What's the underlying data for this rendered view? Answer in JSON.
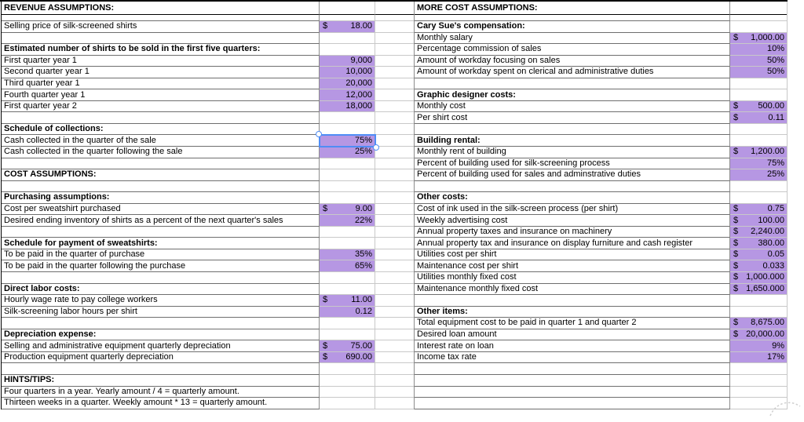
{
  "colors": {
    "highlight": "#b697e3",
    "selection_border": "#4f8df5",
    "grid_dark": "#6e6e6e",
    "grid_mid": "#8c8c8c",
    "grid_light": "#c8c8c8",
    "border_black": "#000000",
    "scribble": "#cfcfcf"
  },
  "left": {
    "rows": [
      {
        "label": "REVENUE ASSUMPTIONS:",
        "bold": true,
        "header": true
      },
      {
        "spacer": true
      },
      {
        "label": "Selling price of silk-screened shirts",
        "dollar": "$",
        "value": "18.00",
        "hl": true
      },
      {
        "label": ""
      },
      {
        "label": "Estimated number of shirts to be sold in the first five quarters:",
        "bold": true
      },
      {
        "label": "First quarter year 1",
        "value": "9,000",
        "hl": true
      },
      {
        "label": "Second quarter year 1",
        "value": "10,000",
        "hl": true
      },
      {
        "label": "Third quarter year 1",
        "value": "20,000",
        "hl": true
      },
      {
        "label": "Fourth quarter year 1",
        "value": "12,000",
        "hl": true
      },
      {
        "label": "First quarter year 2",
        "value": "18,000",
        "hl": true
      },
      {
        "label": ""
      },
      {
        "label": "Schedule of collections:",
        "bold": true
      },
      {
        "label": "Cash collected in the quarter of the sale",
        "value": "75%",
        "hl": true,
        "selected": true
      },
      {
        "label": "Cash collected in the quarter following the sale",
        "value": "25%",
        "hl": true
      },
      {
        "label": ""
      },
      {
        "label": "COST ASSUMPTIONS:",
        "bold": true
      },
      {
        "label": ""
      },
      {
        "label": "Purchasing assumptions:",
        "bold": true
      },
      {
        "label": "Cost per sweatshirt purchased",
        "dollar": "$",
        "value": "9.00",
        "hl": true
      },
      {
        "label": "Desired ending inventory of shirts as a percent of the next quarter's sales",
        "value": "22%",
        "hl": true
      },
      {
        "label": ""
      },
      {
        "label": "Schedule for payment of sweatshirts:",
        "bold": true
      },
      {
        "label": "To be paid in the quarter of purchase",
        "value": "35%",
        "hl": true
      },
      {
        "label": "To be paid in the quarter following the purchase",
        "value": "65%",
        "hl": true
      },
      {
        "label": ""
      },
      {
        "label": "Direct labor costs:",
        "bold": true
      },
      {
        "label": "Hourly wage rate to pay college workers",
        "dollar": "$",
        "value": "11.00",
        "hl": true
      },
      {
        "label": "Silk-screening labor hours per shirt",
        "value": "0.12",
        "hl": true
      },
      {
        "label": ""
      },
      {
        "label": "Depreciation expense:",
        "bold": true
      },
      {
        "label": "Selling and administrative equipment quarterly depreciation",
        "dollar": "$",
        "value": "75.00",
        "hl": true
      },
      {
        "label": "Production equipment quarterly depreciation",
        "dollar": "$",
        "value": "690.00",
        "hl": true
      },
      {
        "label": ""
      },
      {
        "label": "HINTS/TIPS:",
        "bold": true
      },
      {
        "label": "Four quarters in a year.  Yearly amount / 4 = quarterly amount."
      },
      {
        "label": "Thirteen weeks in a quarter.  Weekly amount * 13 = quarterly amount."
      }
    ]
  },
  "right": {
    "rows": [
      {
        "label": "MORE COST ASSUMPTIONS:",
        "bold": true,
        "header": true
      },
      {
        "spacer": true
      },
      {
        "label": "Cary Sue's compensation:",
        "bold": true
      },
      {
        "label": "Monthly salary",
        "dollar": "$",
        "value": "1,000.00",
        "hl": true
      },
      {
        "label": "Percentage commission of sales",
        "value": "10%",
        "hl": true
      },
      {
        "label": "Amount of workday focusing on sales",
        "value": "50%",
        "hl": true
      },
      {
        "label": "Amount of workday spent on clerical and administrative duties",
        "value": "50%",
        "hl": true
      },
      {
        "label": ""
      },
      {
        "label": "Graphic designer costs:",
        "bold": true
      },
      {
        "label": "Monthly cost",
        "dollar": "$",
        "value": "500.00",
        "hl": true
      },
      {
        "label": "Per shirt cost",
        "dollar": "$",
        "value": "0.11",
        "hl": true
      },
      {
        "label": ""
      },
      {
        "label": "Building rental:",
        "bold": true
      },
      {
        "label": "Monthly rent of building",
        "dollar": "$",
        "value": "1,200.00",
        "hl": true
      },
      {
        "label": "Percent of building used for silk-screening process",
        "value": "75%",
        "hl": true
      },
      {
        "label": "Percent of building used for sales and adminstrative duties",
        "value": "25%",
        "hl": true
      },
      {
        "label": ""
      },
      {
        "label": "Other costs:",
        "bold": true
      },
      {
        "label": "Cost of ink used in the silk-screen process (per shirt)",
        "dollar": "$",
        "value": "0.75",
        "hl": true
      },
      {
        "label": "Weekly advertising cost",
        "dollar": "$",
        "value": "100.00",
        "hl": true
      },
      {
        "label": "Annual property taxes and insurance on machinery",
        "dollar": "$",
        "value": "2,240.00",
        "hl": true
      },
      {
        "label": "Annual property tax and insurance on display furniture and cash register",
        "dollar": "$",
        "value": "380.00",
        "hl": true
      },
      {
        "label": "Utilities cost per shirt",
        "dollar": "$",
        "value": "0.05",
        "hl": true
      },
      {
        "label": "Maintenance cost per shirt",
        "dollar": "$",
        "value": "0.033",
        "hl": true
      },
      {
        "label": "Utilities monthly fixed cost",
        "dollar": "$",
        "value": "1,000.000",
        "hl": true
      },
      {
        "label": "Maintenance monthly fixed cost",
        "dollar": "$",
        "value": "1,650.000",
        "hl": true
      },
      {
        "label": ""
      },
      {
        "label": "Other items:",
        "bold": true
      },
      {
        "label": "Total equipment cost to be paid in quarter 1 and quarter 2",
        "dollar": "$",
        "value": "8,675.00",
        "hl": true
      },
      {
        "label": "Desired loan amount",
        "dollar": "$",
        "value": "20,000.00",
        "hl": true
      },
      {
        "label": "Interest rate on loan",
        "value": "9%",
        "hl": true
      },
      {
        "label": "Income tax rate",
        "value": "17%",
        "hl": true
      },
      {
        "label": ""
      },
      {
        "label": ""
      },
      {
        "label": ""
      },
      {
        "label": ""
      }
    ]
  }
}
